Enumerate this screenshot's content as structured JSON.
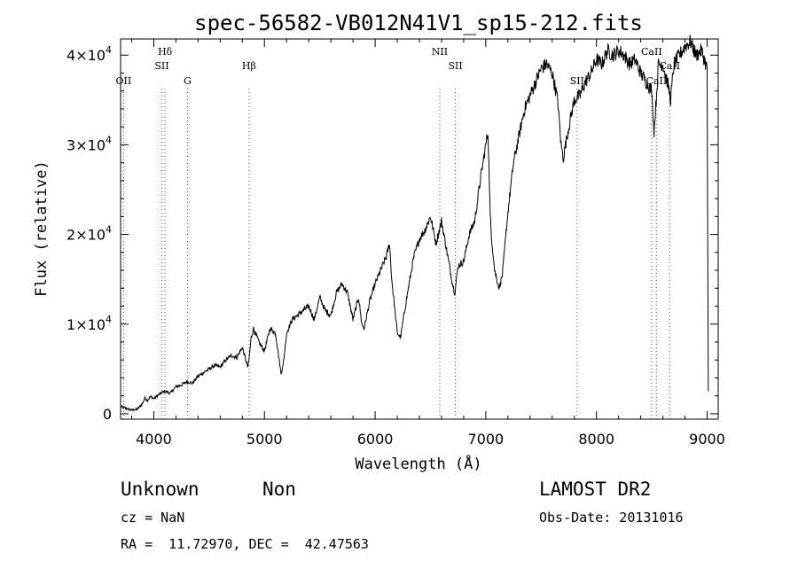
{
  "chart_data": {
    "type": "line",
    "title": "spec-56582-VB012N41V1_sp15-212.fits",
    "xlabel": "Wavelength (Å)",
    "ylabel": "Flux (relative)",
    "xlim": [
      3700,
      9100
    ],
    "ylim": [
      -600,
      41800
    ],
    "x_ticks": [
      4000,
      5000,
      6000,
      7000,
      8000,
      9000
    ],
    "y_ticks": [
      {
        "value": 0,
        "mantissa": "0",
        "exponent": ""
      },
      {
        "value": 10000,
        "mantissa": "1×10",
        "exponent": "4"
      },
      {
        "value": 20000,
        "mantissa": "2×10",
        "exponent": "4"
      },
      {
        "value": 30000,
        "mantissa": "3×10",
        "exponent": "4"
      },
      {
        "value": 40000,
        "mantissa": "4×10",
        "exponent": "4"
      }
    ],
    "grid": false,
    "series": [
      {
        "x": [
          3700,
          3750,
          3800,
          3850,
          3880,
          3900,
          3920,
          3940,
          3970,
          4000,
          4050,
          4100,
          4150,
          4200,
          4250,
          4300,
          4350,
          4400,
          4450,
          4500,
          4550,
          4600,
          4650,
          4700,
          4750,
          4800,
          4850,
          4860,
          4880,
          4900,
          4950,
          5000,
          5050,
          5100,
          5150,
          5170,
          5200,
          5250,
          5300,
          5350,
          5400,
          5450,
          5500,
          5550,
          5600,
          5650,
          5700,
          5750,
          5800,
          5850,
          5880,
          5900,
          5950,
          6000,
          6050,
          6100,
          6130,
          6150,
          6200,
          6230,
          6260,
          6300,
          6350,
          6400,
          6450,
          6500,
          6550,
          6600,
          6650,
          6700,
          6720,
          6750,
          6800,
          6850,
          6900,
          6950,
          7000,
          7020,
          7040,
          7050,
          7080,
          7120,
          7150,
          7200,
          7250,
          7300,
          7350,
          7400,
          7450,
          7500,
          7550,
          7600,
          7650,
          7680,
          7700,
          7720,
          7750,
          7800,
          7850,
          7900,
          7950,
          8000,
          8050,
          8100,
          8150,
          8200,
          8250,
          8300,
          8350,
          8400,
          8450,
          8500,
          8520,
          8540,
          8560,
          8600,
          8650,
          8670,
          8700,
          8750,
          8800,
          8850,
          8900,
          8950,
          9000,
          9010
        ],
        "y": [
          800,
          600,
          400,
          500,
          900,
          1200,
          1800,
          1500,
          1900,
          1700,
          2200,
          2500,
          2300,
          3000,
          3200,
          3600,
          3400,
          4200,
          4600,
          5000,
          5400,
          5200,
          6000,
          6500,
          6300,
          7400,
          5200,
          6000,
          8500,
          9500,
          8000,
          7000,
          9500,
          9000,
          4500,
          5500,
          9000,
          10500,
          11000,
          11500,
          12000,
          10500,
          13000,
          11500,
          11000,
          13500,
          14500,
          13500,
          10500,
          13000,
          10000,
          9500,
          12500,
          14500,
          16000,
          17500,
          19000,
          15000,
          9000,
          8500,
          11000,
          14000,
          17500,
          19500,
          20500,
          22000,
          19000,
          21500,
          18000,
          14500,
          13500,
          16500,
          17000,
          20000,
          21500,
          26000,
          30000,
          31500,
          22000,
          20000,
          16000,
          14000,
          15500,
          22500,
          28000,
          31000,
          34000,
          35500,
          37000,
          38500,
          39000,
          38000,
          35000,
          30000,
          28500,
          30000,
          32000,
          35000,
          35500,
          37000,
          38000,
          39500,
          39000,
          40500,
          40000,
          40500,
          40000,
          39000,
          39500,
          38000,
          37000,
          36000,
          31500,
          35000,
          39000,
          39000,
          36500,
          35000,
          39000,
          40000,
          41000,
          41500,
          40000,
          40500,
          38500,
          2500
        ]
      }
    ],
    "line_markers": [
      {
        "name": "OII",
        "wavelength": 3727,
        "label_row": 3
      },
      {
        "name": "Hδ",
        "wavelength": 4102,
        "label_row": 1
      },
      {
        "name": "SII",
        "wavelength": 4072,
        "label_row": 2
      },
      {
        "name": "G",
        "wavelength": 4305,
        "label_row": 3
      },
      {
        "name": "Hβ",
        "wavelength": 4861,
        "label_row": 2
      },
      {
        "name": "NII",
        "wavelength": 6584,
        "label_row": 1
      },
      {
        "name": "SII",
        "wavelength": 6725,
        "label_row": 2
      },
      {
        "name": "SII",
        "wavelength": 7825,
        "label_row": 3
      },
      {
        "name": "CaII",
        "wavelength": 8498,
        "label_row": 1
      },
      {
        "name": "CaII",
        "wavelength": 8542,
        "label_row": 3
      },
      {
        "name": "CaII",
        "wavelength": 8662,
        "label_row": 2
      }
    ]
  },
  "info": {
    "class": "Unknown",
    "subclass": "Non",
    "survey": "LAMOST DR2",
    "cz": "cz = NaN",
    "obs_date": "Obs-Date: 20131016",
    "coords": "RA =  11.72970, DEC =  42.47563"
  }
}
